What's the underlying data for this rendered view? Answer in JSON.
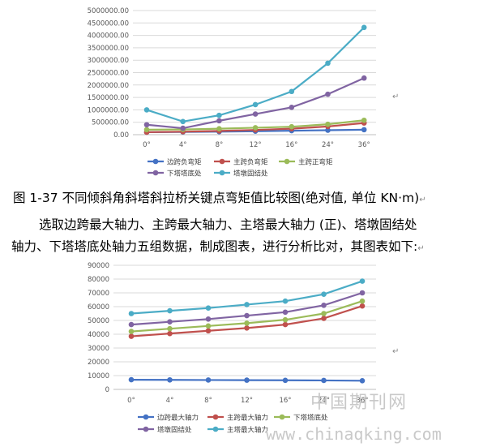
{
  "caption": "图 1-37 不同倾斜角斜塔斜拉桥关键点弯矩值比较图(绝对值, 单位 KN·m)",
  "para_line1": "选取边跨最大轴力、主跨最大轴力、主塔最大轴力 (正)、塔墩固结处",
  "para_line2": "轴力、下塔塔底处轴力五组数据，制成图表，进行分析比对，其图表如下:",
  "return_mark": "↵",
  "watermark_cn": "中国期刊网",
  "watermark_url": "www.chinaqking.com",
  "chart_data": [
    {
      "type": "line",
      "title": "",
      "xlabel": "",
      "ylabel": "",
      "x": [
        "0°",
        "4°",
        "8°",
        "12°",
        "16°",
        "24°",
        "36°"
      ],
      "ylim": [
        0,
        5000000
      ],
      "yticks": [
        "0.00",
        "500000.00",
        "1000000.00",
        "1500000.00",
        "2000000.00",
        "2500000.00",
        "3000000.00",
        "3500000.00",
        "4000000.00",
        "4500000.00",
        "5000000.00"
      ],
      "grid": true,
      "legend": "bottom",
      "series": [
        {
          "name": "边跨负弯矩",
          "color": "#4472c4",
          "values": [
            100000,
            110000,
            120000,
            140000,
            160000,
            180000,
            200000
          ]
        },
        {
          "name": "主跨负弯矩",
          "color": "#c0504d",
          "values": [
            100000,
            120000,
            150000,
            190000,
            240000,
            330000,
            470000
          ]
        },
        {
          "name": "主跨正弯矩",
          "color": "#9bbb59",
          "values": [
            200000,
            210000,
            240000,
            280000,
            320000,
            420000,
            580000
          ]
        },
        {
          "name": "下塔塔底处",
          "color": "#8064a2",
          "values": [
            400000,
            260000,
            560000,
            830000,
            1100000,
            1630000,
            2280000
          ]
        },
        {
          "name": "塔墩固结处",
          "color": "#4bacc6",
          "values": [
            1000000,
            530000,
            780000,
            1210000,
            1740000,
            2880000,
            4320000
          ]
        }
      ]
    },
    {
      "type": "line",
      "title": "",
      "xlabel": "",
      "ylabel": "",
      "x": [
        "0°",
        "4°",
        "8°",
        "12°",
        "16°",
        "24°",
        "36°"
      ],
      "ylim": [
        0,
        90000
      ],
      "yticks": [
        "0",
        "10000",
        "20000",
        "30000",
        "40000",
        "50000",
        "60000",
        "70000",
        "80000",
        "90000"
      ],
      "grid": true,
      "legend": "bottom",
      "series": [
        {
          "name": "边跨最大轴力",
          "color": "#4472c4",
          "values": [
            7000,
            6900,
            6800,
            6700,
            6600,
            6500,
            6300
          ]
        },
        {
          "name": "主跨最大轴力",
          "color": "#c0504d",
          "values": [
            38500,
            40500,
            42500,
            44500,
            47000,
            51500,
            60500
          ]
        },
        {
          "name": "下塔塔底处",
          "color": "#9bbb59",
          "values": [
            42000,
            44000,
            46000,
            48000,
            50500,
            55000,
            64000
          ]
        },
        {
          "name": "塔墩固结处",
          "color": "#8064a2",
          "values": [
            47000,
            49000,
            51000,
            53500,
            56000,
            61000,
            70000
          ]
        },
        {
          "name": "主塔最大轴力",
          "color": "#4bacc6",
          "values": [
            55000,
            57000,
            59000,
            61500,
            64000,
            69000,
            78500
          ]
        }
      ]
    }
  ]
}
